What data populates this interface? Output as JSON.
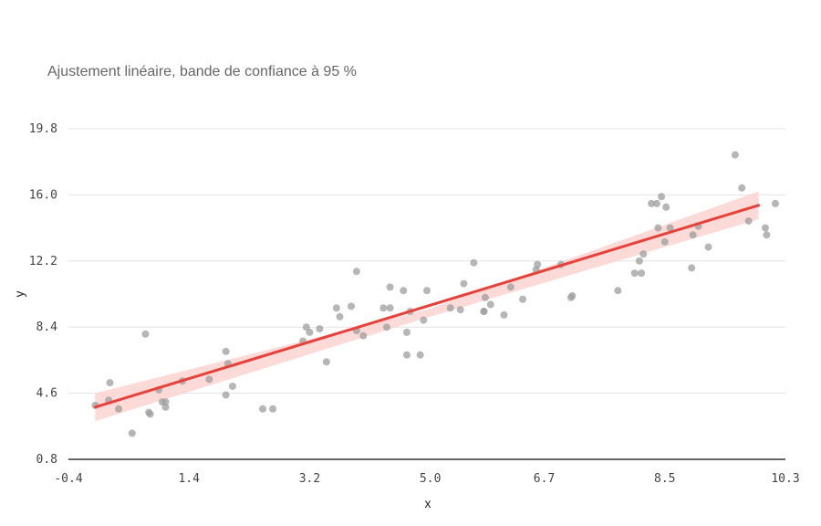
{
  "chart_data": {
    "type": "scatter",
    "title": "Ajustement linéaire, bande de confiance à 95 %",
    "xlabel": "x",
    "ylabel": "y",
    "xlim": [
      -0.4,
      10.3
    ],
    "ylim": [
      0.8,
      21.0
    ],
    "x_ticks": [
      "-0.4",
      "1.4",
      "3.2",
      "5.0",
      "6.7",
      "8.5",
      "10.3"
    ],
    "y_ticks": [
      "0.8",
      "4.6",
      "8.4",
      "12.2",
      "16.0",
      "19.8"
    ],
    "grid": true,
    "colors": {
      "points": "#9e9e9e",
      "fit_line": "#e8413a",
      "band": "#fbd3d0"
    },
    "fit": {
      "x": [
        0.0,
        9.9
      ],
      "y": [
        3.8,
        15.4
      ]
    },
    "band": {
      "x": [
        0.0,
        4.95,
        9.9
      ],
      "lower": [
        3.0,
        8.95,
        14.6
      ],
      "upper": [
        4.6,
        9.4,
        16.2
      ]
    },
    "points": [
      [
        0.0,
        3.9
      ],
      [
        0.2,
        4.2
      ],
      [
        0.22,
        5.2
      ],
      [
        0.35,
        3.7
      ],
      [
        0.55,
        2.3
      ],
      [
        0.75,
        8.0
      ],
      [
        0.8,
        3.5
      ],
      [
        0.82,
        3.4
      ],
      [
        0.95,
        4.8
      ],
      [
        1.0,
        4.1
      ],
      [
        1.05,
        4.1
      ],
      [
        1.05,
        3.8
      ],
      [
        1.3,
        5.3
      ],
      [
        1.7,
        5.4
      ],
      [
        1.95,
        7.0
      ],
      [
        1.98,
        6.3
      ],
      [
        1.95,
        4.5
      ],
      [
        2.05,
        5.0
      ],
      [
        2.5,
        3.7
      ],
      [
        2.65,
        3.7
      ],
      [
        3.1,
        7.6
      ],
      [
        3.15,
        8.4
      ],
      [
        3.2,
        8.1
      ],
      [
        3.35,
        8.3
      ],
      [
        3.45,
        6.4
      ],
      [
        3.6,
        9.5
      ],
      [
        3.65,
        9.0
      ],
      [
        3.82,
        9.6
      ],
      [
        3.9,
        11.6
      ],
      [
        3.9,
        8.2
      ],
      [
        4.0,
        7.9
      ],
      [
        4.3,
        9.5
      ],
      [
        4.35,
        8.4
      ],
      [
        4.4,
        9.5
      ],
      [
        4.4,
        10.7
      ],
      [
        4.6,
        10.5
      ],
      [
        4.65,
        6.8
      ],
      [
        4.65,
        8.1
      ],
      [
        4.7,
        9.3
      ],
      [
        4.85,
        6.8
      ],
      [
        4.9,
        8.8
      ],
      [
        4.95,
        10.5
      ],
      [
        5.3,
        9.5
      ],
      [
        5.45,
        9.4
      ],
      [
        5.5,
        10.9
      ],
      [
        5.65,
        12.1
      ],
      [
        5.8,
        9.3
      ],
      [
        5.82,
        10.1
      ],
      [
        5.8,
        9.3
      ],
      [
        5.9,
        9.7
      ],
      [
        6.1,
        9.1
      ],
      [
        6.2,
        10.7
      ],
      [
        6.38,
        10.0
      ],
      [
        6.58,
        11.7
      ],
      [
        6.6,
        12.0
      ],
      [
        6.95,
        12.0
      ],
      [
        7.1,
        10.1
      ],
      [
        7.12,
        10.2
      ],
      [
        7.8,
        10.5
      ],
      [
        8.05,
        11.5
      ],
      [
        8.12,
        12.2
      ],
      [
        8.15,
        11.5
      ],
      [
        8.18,
        12.6
      ],
      [
        8.3,
        15.5
      ],
      [
        8.38,
        15.5
      ],
      [
        8.4,
        14.1
      ],
      [
        8.45,
        15.9
      ],
      [
        8.5,
        13.3
      ],
      [
        8.52,
        15.3
      ],
      [
        8.58,
        14.1
      ],
      [
        8.9,
        11.8
      ],
      [
        8.92,
        13.7
      ],
      [
        9.0,
        14.2
      ],
      [
        9.15,
        13.0
      ],
      [
        9.55,
        18.3
      ],
      [
        9.65,
        16.4
      ],
      [
        9.75,
        14.5
      ],
      [
        10.0,
        14.1
      ],
      [
        10.02,
        13.7
      ],
      [
        10.15,
        15.5
      ]
    ]
  }
}
